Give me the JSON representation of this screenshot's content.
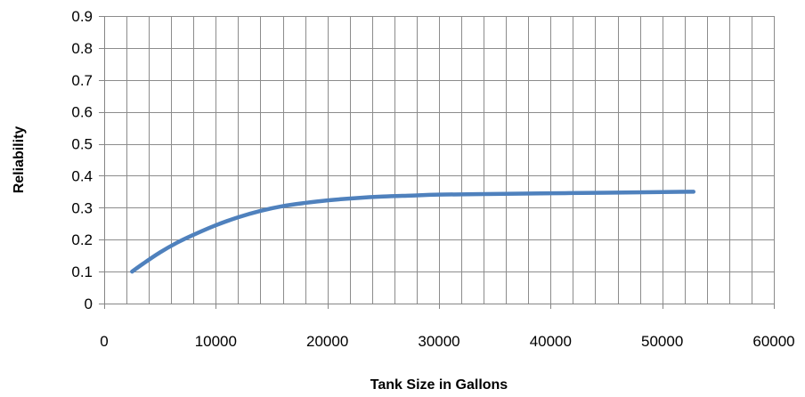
{
  "chart_data": {
    "type": "line",
    "title": "",
    "xlabel": "Tank Size in Gallons",
    "ylabel": "Reliability",
    "xlim": [
      0,
      60000
    ],
    "ylim": [
      0,
      0.9
    ],
    "x_ticks": [
      "0",
      "10000",
      "20000",
      "30000",
      "40000",
      "50000",
      "60000"
    ],
    "y_ticks": [
      "0",
      "0.1",
      "0.2",
      "0.3",
      "0.4",
      "0.5",
      "0.6",
      "0.7",
      "0.8",
      "0.9"
    ],
    "grid": true,
    "minor_x_step": 2000,
    "series": [
      {
        "color": "#4f81bd",
        "x": [
          2500,
          3500,
          5000,
          6500,
          8000,
          10000,
          12000,
          14000,
          16000,
          18000,
          20000,
          22500,
          25000,
          27500,
          30000,
          35000,
          40000,
          45000,
          50000,
          52800
        ],
        "y": [
          0.1,
          0.125,
          0.16,
          0.19,
          0.215,
          0.245,
          0.27,
          0.29,
          0.305,
          0.315,
          0.323,
          0.33,
          0.335,
          0.338,
          0.341,
          0.343,
          0.345,
          0.347,
          0.349,
          0.35
        ]
      }
    ]
  }
}
